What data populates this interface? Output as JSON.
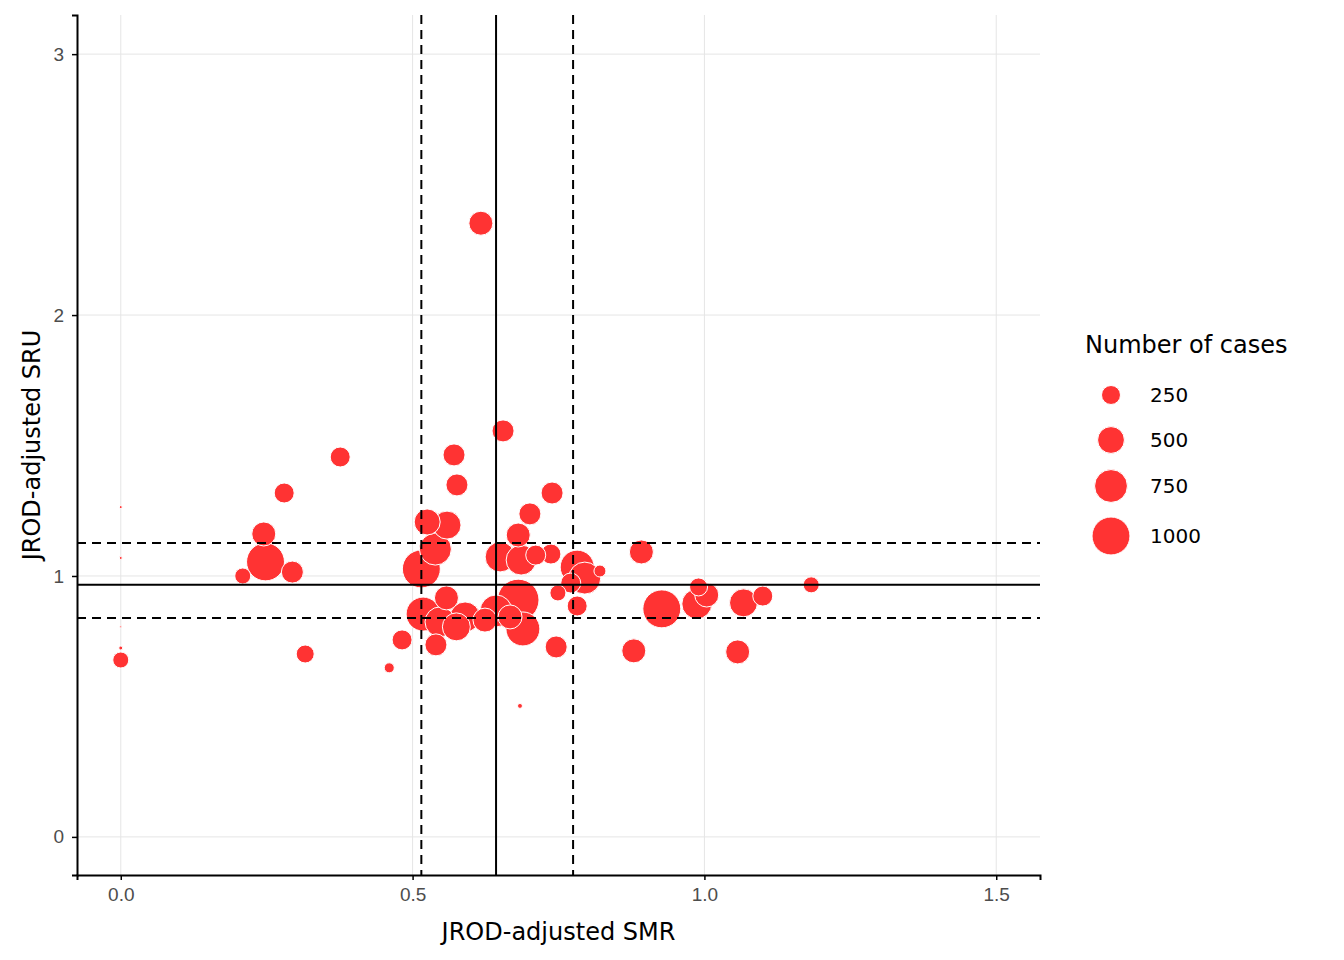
{
  "chart_data": {
    "type": "scatter",
    "x_label": "JROD-adjusted SMR",
    "y_label": "JROD-adjusted SRU",
    "x": [
      0.617,
      0.655,
      0.376,
      0.571,
      0.576,
      0.28,
      0.739,
      0,
      0.701,
      0.525,
      0.559,
      0.245,
      0.681,
      0.539,
      0.737,
      0.892,
      0.65,
      0.686,
      0.711,
      0,
      0.248,
      0.515,
      0.782,
      0.294,
      0.209,
      0.821,
      0.795,
      0.771,
      1.183,
      0.99,
      0.749,
      1.004,
      1.1,
      0.987,
      1.067,
      0.927,
      0.681,
      0.558,
      0.782,
      0.518,
      0.643,
      0.59,
      0.547,
      0.667,
      0.624,
      0.575,
      0.689,
      0,
      0.482,
      0.54,
      0.746,
      0.316,
      0.879,
      1.057,
      0,
      0,
      0.46,
      0.684
    ],
    "values": [
      2.352,
      1.556,
      1.456,
      1.464,
      1.349,
      1.318,
      1.318,
      1.264,
      1.238,
      1.207,
      1.195,
      1.161,
      1.157,
      1.103,
      1.084,
      1.092,
      1.073,
      1.061,
      1.08,
      1.069,
      1.054,
      1.027,
      1.034,
      1.015,
      1.0,
      1.019,
      0.992,
      0.973,
      0.966,
      0.958,
      0.935,
      0.927,
      0.923,
      0.893,
      0.897,
      0.874,
      0.908,
      0.916,
      0.885,
      0.854,
      0.866,
      0.843,
      0.824,
      0.843,
      0.831,
      0.805,
      0.797,
      0.805,
      0.755,
      0.736,
      0.728,
      0.701,
      0.713,
      0.709,
      0.724,
      0.678,
      0.648,
      0.502
    ],
    "sizes": [
      400,
      336,
      278,
      336,
      336,
      278,
      336,
      6,
      336,
      470,
      544,
      400,
      400,
      711,
      278,
      400,
      625,
      625,
      278,
      6,
      1000,
      1000,
      800,
      336,
      178,
      100,
      711,
      278,
      178,
      225,
      178,
      400,
      278,
      625,
      544,
      1000,
      1200,
      400,
      278,
      800,
      711,
      625,
      625,
      400,
      400,
      544,
      800,
      3,
      278,
      336,
      336,
      225,
      400,
      400,
      11,
      178,
      70,
      17
    ],
    "color": "#ff3333",
    "xlim": [
      -0.075,
      1.575
    ],
    "ylim": [
      -0.146,
      3.15
    ],
    "xticks": [
      {
        "value": 0,
        "label": "0.0"
      },
      0.5,
      {
        "value": 1,
        "label": "1.0"
      },
      1.5
    ],
    "yticks": [
      0,
      1,
      2,
      3
    ],
    "grid": true,
    "reference_lines": {
      "x": {
        "center": 0.643,
        "lower": 0.515,
        "upper": 0.775
      },
      "y": {
        "center": 0.966,
        "lower": 0.839,
        "upper": 1.126
      }
    },
    "legend_title": "Number of cases",
    "size_breaks": [
      250,
      500,
      750,
      1000
    ]
  }
}
